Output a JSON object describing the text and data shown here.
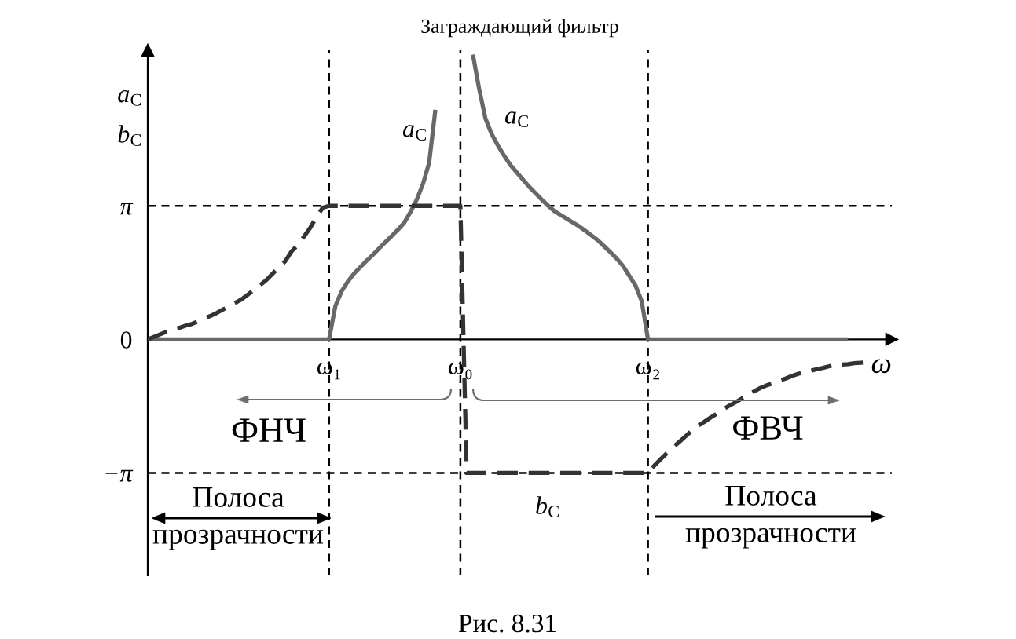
{
  "chart_data": {
    "type": "line",
    "title": "Заграждающий фильтр",
    "xlabel": "ω",
    "ylabel": "a$_{С}$\nb$_{С}$",
    "categories": [
      null,
      null,
      null,
      null,
      null,
      null,
      null,
      null,
      null,
      null,
      null,
      null,
      null,
      null,
      null,
      null,
      null,
      null,
      null,
      null,
      null,
      null,
      null,
      null,
      null,
      null,
      null,
      null,
      null,
      "ω₁",
      null,
      null,
      null,
      null,
      null,
      null,
      null,
      null,
      null,
      null,
      null,
      null,
      null,
      null,
      null,
      null,
      null,
      null,
      null,
      null,
      "ω₀",
      null,
      null,
      null,
      null,
      null,
      null,
      null,
      null,
      null,
      null,
      null,
      null,
      null,
      null,
      null,
      null,
      null,
      null,
      null,
      null,
      null,
      null,
      null,
      null,
      null,
      null,
      null,
      null,
      null,
      "ω₂",
      null,
      null,
      null,
      null,
      null,
      null,
      null,
      null,
      null,
      null,
      null,
      null,
      null,
      null,
      null,
      null,
      null,
      null,
      null,
      null,
      null,
      null,
      null,
      null,
      null,
      null,
      null,
      null,
      null,
      null,
      null,
      null,
      null,
      null,
      null,
      null,
      null,
      null,
      null
    ],
    "ylim": [
      -5.55,
      6.8
    ],
    "yticks": [
      {
        "value": -3.14,
        "label": "−π"
      },
      0,
      {
        "value": 3.14,
        "label": "π"
      }
    ],
    "series": [
      {
        "color": "#686868",
        "line_style": "solid",
        "values": [
          0,
          0,
          0,
          0,
          0,
          0,
          0,
          0,
          0,
          0,
          0,
          0,
          0,
          0,
          0,
          0,
          0,
          0,
          0,
          0,
          0,
          0,
          0,
          0,
          0,
          0,
          0,
          0,
          0,
          0,
          0.78,
          1.13,
          1.36,
          1.55,
          1.7,
          1.85,
          1.99,
          2.14,
          2.29,
          2.43,
          2.58,
          2.74,
          2.99,
          3.28,
          3.65,
          4.15,
          5.4,
          null,
          null,
          null,
          null,
          null,
          null,
          null,
          null,
          null,
          null,
          null,
          null,
          null,
          null,
          null,
          null,
          null,
          null,
          null,
          null,
          null,
          null,
          null,
          null,
          null,
          null,
          null,
          null,
          null,
          null,
          null,
          null,
          null,
          null,
          null,
          null,
          null,
          null,
          null,
          null,
          null,
          null,
          null,
          null,
          null,
          null,
          null,
          null,
          null,
          null,
          null,
          null,
          null,
          null,
          null,
          null,
          null,
          null,
          null,
          null,
          null,
          null,
          null,
          null,
          null,
          null,
          null,
          null,
          null,
          null,
          null,
          null,
          null
        ]
      },
      {
        "color": "#686868",
        "line_style": "solid",
        "values": [
          null,
          null,
          null,
          null,
          null,
          null,
          null,
          null,
          null,
          null,
          null,
          null,
          null,
          null,
          null,
          null,
          null,
          null,
          null,
          null,
          null,
          null,
          null,
          null,
          null,
          null,
          null,
          null,
          null,
          null,
          null,
          null,
          null,
          null,
          null,
          null,
          null,
          null,
          null,
          null,
          null,
          null,
          null,
          null,
          null,
          null,
          null,
          null,
          null,
          null,
          null,
          null,
          6.7,
          5.89,
          5.2,
          4.83,
          4.56,
          4.32,
          4.1,
          3.93,
          3.76,
          3.59,
          3.44,
          3.29,
          3.15,
          3.02,
          2.93,
          2.84,
          2.75,
          2.66,
          2.55,
          2.44,
          2.33,
          2.19,
          2.05,
          1.9,
          1.73,
          1.5,
          1.27,
          0.9,
          0,
          0,
          0,
          0,
          0,
          0,
          0,
          0,
          0,
          0,
          0,
          0,
          0,
          0,
          0,
          0,
          0,
          0,
          0,
          0,
          0,
          0,
          0,
          0,
          0,
          0,
          0,
          0,
          0,
          0,
          0,
          0,
          0,
          null,
          null,
          null,
          null,
          null,
          null,
          null
        ]
      },
      {
        "color": "#333333",
        "line_style": "dashed",
        "values": [
          0,
          0.06,
          0.12,
          0.18,
          0.23,
          0.27,
          0.32,
          0.36,
          0.42,
          0.49,
          0.55,
          0.62,
          0.7,
          0.78,
          0.86,
          0.94,
          1.05,
          1.17,
          1.28,
          1.4,
          1.55,
          1.7,
          1.84,
          2.07,
          2.22,
          2.42,
          2.63,
          2.88,
          3.1,
          3.14,
          3.14,
          3.14,
          3.14,
          3.14,
          3.14,
          3.14,
          3.14,
          3.14,
          3.14,
          3.14,
          3.14,
          3.14,
          3.14,
          3.14,
          3.14,
          3.14,
          3.14,
          3.14,
          3.14,
          3.14,
          3.14,
          -3.14,
          -3.14,
          -3.14,
          -3.14,
          -3.14,
          -3.14,
          -3.14,
          -3.14,
          -3.14,
          -3.14,
          -3.14,
          -3.14,
          -3.14,
          -3.14,
          -3.14,
          -3.14,
          -3.14,
          -3.14,
          -3.14,
          -3.14,
          -3.14,
          -3.14,
          -3.14,
          -3.14,
          -3.14,
          -3.14,
          -3.14,
          -3.14,
          -3.14,
          -3.14,
          -2.97,
          -2.82,
          -2.68,
          -2.54,
          -2.41,
          -2.28,
          -2.15,
          -2.03,
          -1.94,
          -1.84,
          -1.75,
          -1.65,
          -1.56,
          -1.48,
          -1.39,
          -1.31,
          -1.22,
          -1.14,
          -1.08,
          -1.03,
          -0.97,
          -0.92,
          -0.86,
          -0.81,
          -0.77,
          -0.74,
          -0.7,
          -0.67,
          -0.63,
          -0.6,
          -0.59,
          -0.58,
          -0.56,
          -0.55,
          -0.54,
          null,
          null,
          null,
          null
        ]
      }
    ],
    "ref_lines": [
      {
        "axis": "x",
        "value": "ω₁",
        "color": "#000000",
        "line_style": "dashed"
      },
      {
        "axis": "x",
        "value": "ω₀",
        "color": "#000000",
        "line_style": "dashed"
      },
      {
        "axis": "x",
        "value": "ω₂",
        "color": "#000000",
        "line_style": "dashed"
      },
      {
        "axis": "y",
        "value": 3.14,
        "color": "#000000",
        "line_style": "dashed"
      },
      {
        "axis": "y",
        "value": -3.14,
        "color": "#000000",
        "line_style": "dashed"
      }
    ],
    "annotations": [
      "a$_{С}$",
      "a$_{С}$",
      "b$_{С}$",
      "ФНЧ",
      "ФВЧ",
      "Полоса\nпрозрачности",
      "Полоса\nпрозрачности",
      "Рис. 8.31"
    ]
  }
}
